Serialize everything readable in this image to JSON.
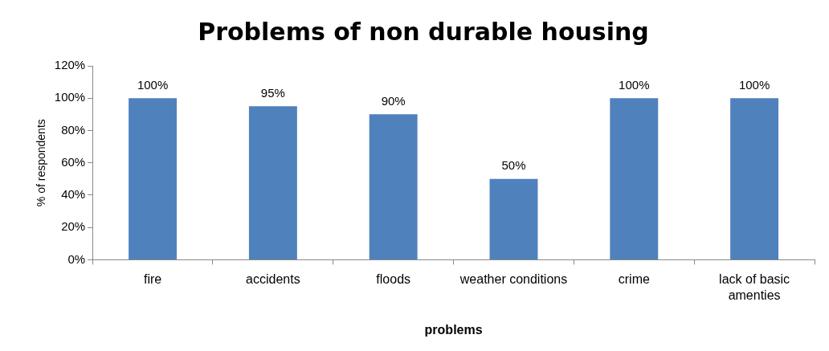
{
  "chart_data": {
    "type": "bar",
    "title": "Problems of non durable housing",
    "xlabel": "problems",
    "ylabel": "% of respondents",
    "categories": [
      "fire",
      "accidents",
      "floods",
      "weather conditions",
      "crime",
      "lack of basic amenties"
    ],
    "values": [
      100,
      95,
      90,
      50,
      100,
      100
    ],
    "value_labels": [
      "100%",
      "95%",
      "90%",
      "50%",
      "100%",
      "100%"
    ],
    "color": "#4f81bd",
    "ylim": [
      0,
      120
    ],
    "yticks": [
      {
        "value": 0,
        "label": "0%"
      },
      {
        "value": 20,
        "label": "20%"
      },
      {
        "value": 40,
        "label": "40%"
      },
      {
        "value": 60,
        "label": "60%"
      },
      {
        "value": 80,
        "label": "80%"
      },
      {
        "value": 100,
        "label": "100%"
      },
      {
        "value": 120,
        "label": "120%"
      }
    ],
    "grid": false,
    "legend": false
  }
}
